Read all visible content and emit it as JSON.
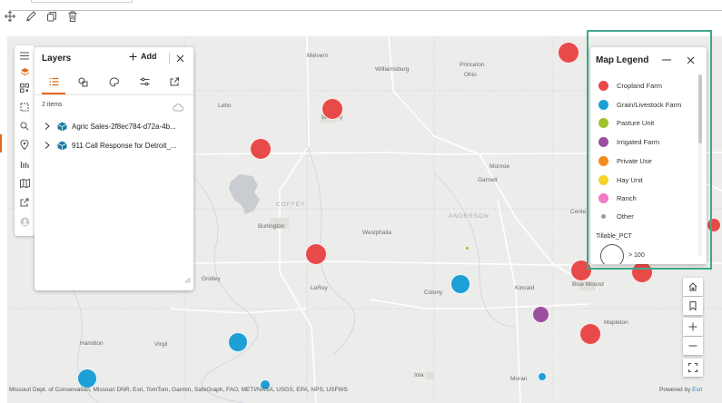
{
  "layers_panel": {
    "title": "Layers",
    "add_label": "Add",
    "items_count": "2 items",
    "layers": [
      {
        "name": "Agric Sales-2f8ec784-d72a-4b..."
      },
      {
        "name": "911 Call Response for Detroit_..."
      }
    ]
  },
  "legend": {
    "title": "Map Legend",
    "items": [
      {
        "label": "Cropland Farm",
        "color": "#e84a4a"
      },
      {
        "label": "Grain/Livestock Farm",
        "color": "#1e9fd6"
      },
      {
        "label": "Pasture Unit",
        "color": "#9dc22e"
      },
      {
        "label": "Irrigated Farm",
        "color": "#9b4fa0"
      },
      {
        "label": "Private Use",
        "color": "#f28c1e"
      },
      {
        "label": "Hay Unit",
        "color": "#f5d327"
      },
      {
        "label": "Ranch",
        "color": "#f07bc8"
      },
      {
        "label": "Other",
        "color": "#9a9a9a"
      }
    ],
    "size_title": "Tillable_PCT",
    "size_label": "> 100"
  },
  "map": {
    "places": [
      {
        "name": "Melvern"
      },
      {
        "name": "Williamsburg"
      },
      {
        "name": "Princeton"
      },
      {
        "name": "Ohio"
      },
      {
        "name": "Lebo"
      },
      {
        "name": "Waverly"
      },
      {
        "name": "Monroe"
      },
      {
        "name": "Garnett"
      },
      {
        "name": "ANDERSON"
      },
      {
        "name": "Burlington"
      },
      {
        "name": "Westphalia"
      },
      {
        "name": "Cente"
      },
      {
        "name": "Gridley"
      },
      {
        "name": "LeRoy"
      },
      {
        "name": "Colony"
      },
      {
        "name": "Kincaid"
      },
      {
        "name": "Blue Mound"
      },
      {
        "name": "Mapleton"
      },
      {
        "name": "Hamilton"
      },
      {
        "name": "Virgil"
      },
      {
        "name": "Iola"
      },
      {
        "name": "Moran"
      },
      {
        "name": "COFFEY"
      }
    ],
    "attribution": "Missouri Dept. of Conservation, Missouri DNR, Esri, TomTom, Garmin, SafeGraph, FAO, METI/NASA, USGS, EPA, NPS, USFWS",
    "powered_by": "Powered by",
    "powered_brand": "Esri"
  },
  "icons": {
    "toolbar": [
      "move-icon",
      "edit-icon",
      "copy-icon",
      "delete-icon"
    ],
    "rail": [
      "menu-icon",
      "layers-icon",
      "qr-icon",
      "select-icon",
      "search-icon",
      "location-icon",
      "chart-icon",
      "map-icon",
      "share-icon",
      "user-icon"
    ],
    "layer_tabs": [
      "list-icon",
      "shapes-icon",
      "style-icon",
      "filter-icon",
      "export-icon"
    ],
    "map_controls": [
      "home-icon",
      "bookmark-icon",
      "zoom-in-icon",
      "zoom-out-icon",
      "fullscreen-icon"
    ]
  }
}
